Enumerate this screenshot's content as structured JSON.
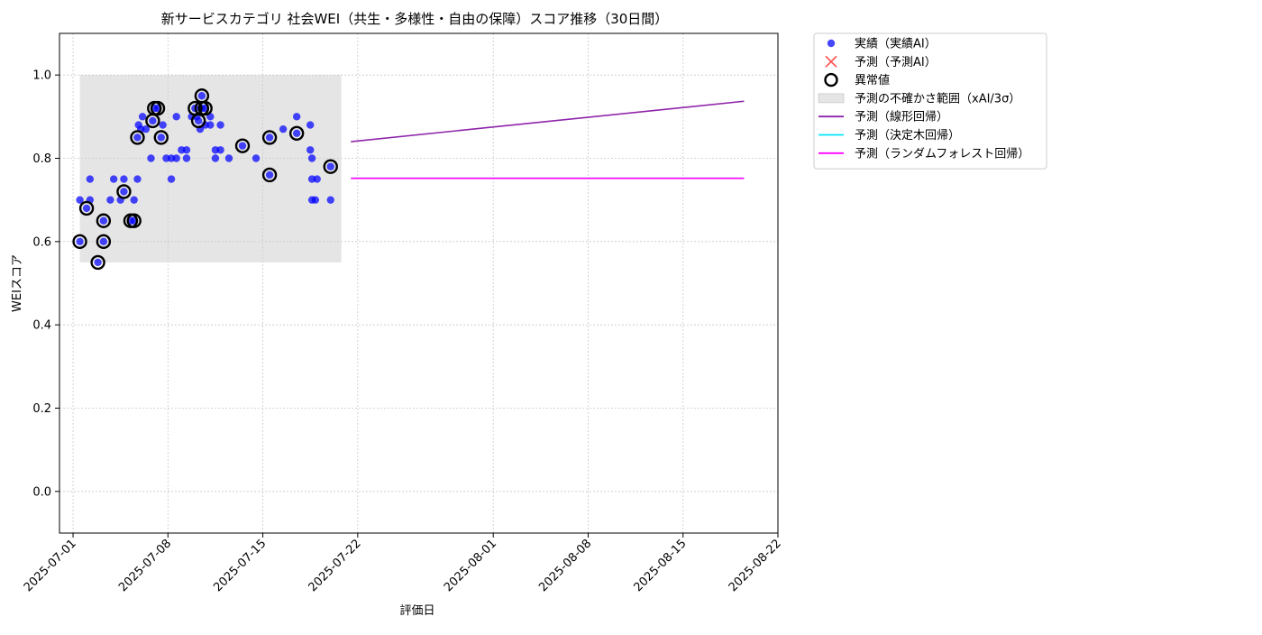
{
  "chart_data": {
    "type": "scatter",
    "title": "新サービスカテゴリ 社会WEI（共生・多様性・自由の保障）スコア推移（30日間）",
    "xlabel": "評価日",
    "ylabel": "WEIスコア",
    "x_domain": [
      "2025-06-30",
      "2025-08-22"
    ],
    "ylim": [
      -0.1,
      1.1
    ],
    "grid": true,
    "legend_position": "outside-top-right",
    "x_ticks": [
      "2025-07-01",
      "2025-07-08",
      "2025-07-15",
      "2025-07-22",
      "2025-08-01",
      "2025-08-08",
      "2025-08-15",
      "2025-08-22"
    ],
    "y_ticks": [
      0.0,
      0.2,
      0.4,
      0.6,
      0.8,
      1.0
    ],
    "y_tick_labels": [
      "0.0",
      "0.2",
      "0.4",
      "0.6",
      "0.8",
      "1.0"
    ],
    "uncertainty_band": {
      "name": "予測の不確かさ範囲（xAI/3σ）",
      "x_start": "2025-07-01T12:00",
      "x_end": "2025-07-20T19:00",
      "y_low": 0.55,
      "y_high": 1.0,
      "color": "#cfcfcf"
    },
    "series": [
      {
        "name": "実績（実績AI）",
        "kind": "scatter",
        "color": "#0000ff",
        "points": [
          [
            "2025-07-01T12:00",
            0.7
          ],
          [
            "2025-07-01T12:00",
            0.6
          ],
          [
            "2025-07-02T00:00",
            0.68
          ],
          [
            "2025-07-02T06:00",
            0.75
          ],
          [
            "2025-07-02T06:00",
            0.7
          ],
          [
            "2025-07-02T20:00",
            0.55
          ],
          [
            "2025-07-03T06:00",
            0.65
          ],
          [
            "2025-07-03T06:00",
            0.6
          ],
          [
            "2025-07-03T18:00",
            0.7
          ],
          [
            "2025-07-04T00:00",
            0.75
          ],
          [
            "2025-07-04T12:00",
            0.7
          ],
          [
            "2025-07-04T18:00",
            0.75
          ],
          [
            "2025-07-04T18:00",
            0.72
          ],
          [
            "2025-07-05T06:00",
            0.65
          ],
          [
            "2025-07-05T12:00",
            0.65
          ],
          [
            "2025-07-05T12:00",
            0.7
          ],
          [
            "2025-07-05T18:00",
            0.75
          ],
          [
            "2025-07-05T18:00",
            0.85
          ],
          [
            "2025-07-05T20:00",
            0.88
          ],
          [
            "2025-07-06T00:00",
            0.87
          ],
          [
            "2025-07-06T03:00",
            0.9
          ],
          [
            "2025-07-06T09:00",
            0.87
          ],
          [
            "2025-07-06T18:00",
            0.8
          ],
          [
            "2025-07-06T21:00",
            0.89
          ],
          [
            "2025-07-07T00:00",
            0.92
          ],
          [
            "2025-07-07T06:00",
            0.92
          ],
          [
            "2025-07-07T12:00",
            0.85
          ],
          [
            "2025-07-07T15:00",
            0.88
          ],
          [
            "2025-07-07T21:00",
            0.8
          ],
          [
            "2025-07-08T06:00",
            0.75
          ],
          [
            "2025-07-08T06:00",
            0.8
          ],
          [
            "2025-07-08T15:00",
            0.8
          ],
          [
            "2025-07-08T15:00",
            0.9
          ],
          [
            "2025-07-09T00:00",
            0.82
          ],
          [
            "2025-07-09T09:00",
            0.82
          ],
          [
            "2025-07-09T09:00",
            0.8
          ],
          [
            "2025-07-09T18:00",
            0.9
          ],
          [
            "2025-07-10T00:00",
            0.92
          ],
          [
            "2025-07-10T03:00",
            0.9
          ],
          [
            "2025-07-10T06:00",
            0.89
          ],
          [
            "2025-07-10T09:00",
            0.87
          ],
          [
            "2025-07-10T12:00",
            0.92
          ],
          [
            "2025-07-10T12:00",
            0.95
          ],
          [
            "2025-07-10T18:00",
            0.92
          ],
          [
            "2025-07-10T18:00",
            0.88
          ],
          [
            "2025-07-11T03:00",
            0.9
          ],
          [
            "2025-07-11T03:00",
            0.88
          ],
          [
            "2025-07-11T12:00",
            0.82
          ],
          [
            "2025-07-11T12:00",
            0.8
          ],
          [
            "2025-07-11T21:00",
            0.82
          ],
          [
            "2025-07-11T21:00",
            0.88
          ],
          [
            "2025-07-12T12:00",
            0.8
          ],
          [
            "2025-07-13T12:00",
            0.83
          ],
          [
            "2025-07-14T12:00",
            0.8
          ],
          [
            "2025-07-15T12:00",
            0.85
          ],
          [
            "2025-07-15T12:00",
            0.76
          ],
          [
            "2025-07-16T12:00",
            0.87
          ],
          [
            "2025-07-17T12:00",
            0.9
          ],
          [
            "2025-07-17T12:00",
            0.86
          ],
          [
            "2025-07-18T12:00",
            0.88
          ],
          [
            "2025-07-18T12:00",
            0.82
          ],
          [
            "2025-07-18T15:00",
            0.8
          ],
          [
            "2025-07-18T15:00",
            0.75
          ],
          [
            "2025-07-18T15:00",
            0.7
          ],
          [
            "2025-07-18T21:00",
            0.7
          ],
          [
            "2025-07-19T00:00",
            0.75
          ],
          [
            "2025-07-20T00:00",
            0.7
          ],
          [
            "2025-07-20T00:00",
            0.78
          ]
        ]
      },
      {
        "name": "予測（予測AI）",
        "kind": "scatter",
        "marker": "x",
        "color": "#ff4d4d",
        "points": []
      },
      {
        "name": "異常値",
        "kind": "scatter",
        "marker": "ring",
        "color": "#000000",
        "points": [
          [
            "2025-07-01T12:00",
            0.6
          ],
          [
            "2025-07-02T00:00",
            0.68
          ],
          [
            "2025-07-02T20:00",
            0.55
          ],
          [
            "2025-07-03T06:00",
            0.65
          ],
          [
            "2025-07-03T06:00",
            0.6
          ],
          [
            "2025-07-04T18:00",
            0.72
          ],
          [
            "2025-07-05T06:00",
            0.65
          ],
          [
            "2025-07-05T12:00",
            0.65
          ],
          [
            "2025-07-05T18:00",
            0.85
          ],
          [
            "2025-07-06T21:00",
            0.89
          ],
          [
            "2025-07-07T00:00",
            0.92
          ],
          [
            "2025-07-07T06:00",
            0.92
          ],
          [
            "2025-07-07T12:00",
            0.85
          ],
          [
            "2025-07-10T00:00",
            0.92
          ],
          [
            "2025-07-10T06:00",
            0.89
          ],
          [
            "2025-07-10T12:00",
            0.95
          ],
          [
            "2025-07-10T12:00",
            0.92
          ],
          [
            "2025-07-10T18:00",
            0.92
          ],
          [
            "2025-07-13T12:00",
            0.83
          ],
          [
            "2025-07-15T12:00",
            0.85
          ],
          [
            "2025-07-15T12:00",
            0.76
          ],
          [
            "2025-07-17T12:00",
            0.86
          ],
          [
            "2025-07-20T00:00",
            0.78
          ]
        ]
      },
      {
        "name": "予測（線形回帰）",
        "kind": "line",
        "color": "#8e24aa",
        "points": [
          [
            "2025-07-21T12:00",
            0.84
          ],
          [
            "2025-08-19T12:00",
            0.937
          ]
        ]
      },
      {
        "name": "予測（決定木回帰）",
        "kind": "line",
        "color": "#00e5ff",
        "points": [
          [
            "2025-07-21T12:00",
            0.752
          ],
          [
            "2025-08-19T12:00",
            0.752
          ]
        ]
      },
      {
        "name": "予測（ランダムフォレスト回帰）",
        "kind": "line",
        "color": "#ff00ff",
        "points": [
          [
            "2025-07-21T12:00",
            0.752
          ],
          [
            "2025-08-19T12:00",
            0.752
          ]
        ]
      }
    ]
  }
}
